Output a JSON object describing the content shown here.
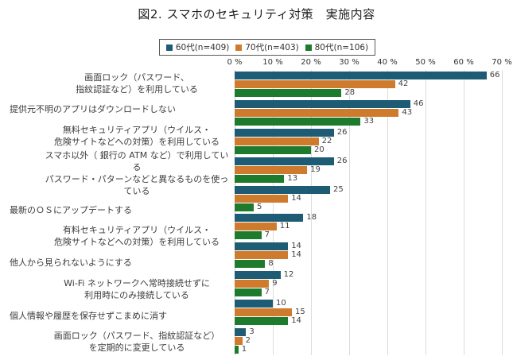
{
  "title": "図2. スマホのセキュリティ対策　実施内容",
  "legend": {
    "items": [
      {
        "label": "60代(n=409)",
        "color": "#1E5B74"
      },
      {
        "label": "70代(n=403)",
        "color": "#CF7B2E"
      },
      {
        "label": "80代(n=106)",
        "color": "#1E7A2C"
      }
    ]
  },
  "axis": {
    "tick_labels": [
      "0 %",
      "10 %",
      "20 %",
      "30 %",
      "40 %",
      "50 %",
      "60 %",
      "70 %"
    ]
  },
  "colors": {
    "series_60s": "#1E5B74",
    "series_70s": "#CF7B2E",
    "series_80s": "#1E7A2C",
    "gridline": "#DCDCDC",
    "axis_line": "#C6C6C6",
    "category_text": "#3C3C3C",
    "value_text": "#404040",
    "legend_border": "#595959"
  },
  "chart_data": {
    "type": "bar",
    "orientation": "horizontal",
    "title": "図2. スマホのセキュリティ対策　実施内容",
    "categories": [
      "画面ロック（パスワード、\n指紋認証など）を利用している",
      "提供元不明のアプリはダウンロードしない",
      "無料セキュリティアプリ（ウイルス・\n危険サイトなどへの対策）を利用している",
      "スマホ以外（ 銀行の ATM など）で利用している\nパスワード・パターンなどと異なるものを使っている",
      "最新のＯＳにアップデートする",
      "有料セキュリティアプリ（ウイルス・\n危険サイトなどへの対策）を利用している",
      "他人から見られないようにする",
      "Wi-Fi ネットワークへ常時接続せずに\n利用時にのみ接続している",
      "個人情報や履歴を保存せずこまめに消す",
      "画面ロック（パスワード、指紋認証など）\nを定期的に変更している"
    ],
    "category_align": [
      "center",
      "left",
      "center",
      "center",
      "left",
      "center",
      "left",
      "center",
      "left",
      "center"
    ],
    "series": [
      {
        "name": "60代(n=409)",
        "color": "#1E5B74",
        "values": [
          66,
          46,
          26,
          26,
          25,
          18,
          14,
          12,
          10,
          3
        ]
      },
      {
        "name": "70代(n=403)",
        "color": "#CF7B2E",
        "values": [
          42,
          43,
          22,
          19,
          14,
          11,
          14,
          9,
          15,
          2
        ]
      },
      {
        "name": "80代(n=106)",
        "color": "#1E7A2C",
        "values": [
          28,
          33,
          20,
          13,
          5,
          7,
          8,
          7,
          14,
          1
        ]
      }
    ],
    "xlim": [
      0,
      70
    ],
    "tick_step": 10,
    "grid": true,
    "legend_position": "top",
    "value_labels": true,
    "x_axis_position": "top"
  }
}
